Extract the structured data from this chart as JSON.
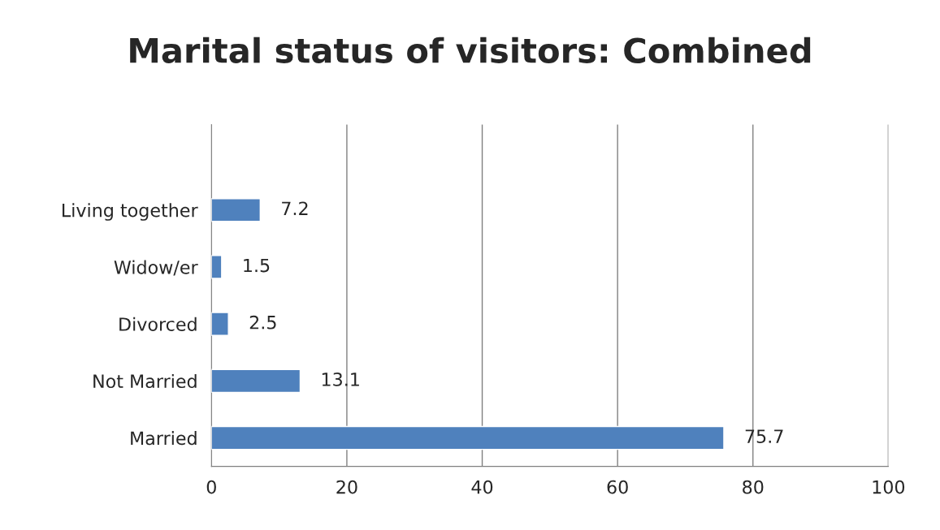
{
  "chart_data": {
    "type": "bar",
    "orientation": "horizontal",
    "title": "Marital status of visitors: Combined",
    "categories": [
      "Living together",
      "Widow/er",
      "Divorced",
      "Not Married",
      "Married"
    ],
    "values": [
      7.2,
      1.5,
      2.5,
      13.1,
      75.7
    ],
    "color": "#4f81bd",
    "xlim": [
      0,
      100
    ],
    "xticks": [
      0,
      20,
      40,
      60,
      80,
      100
    ],
    "grid": "x",
    "data_labels": true
  }
}
